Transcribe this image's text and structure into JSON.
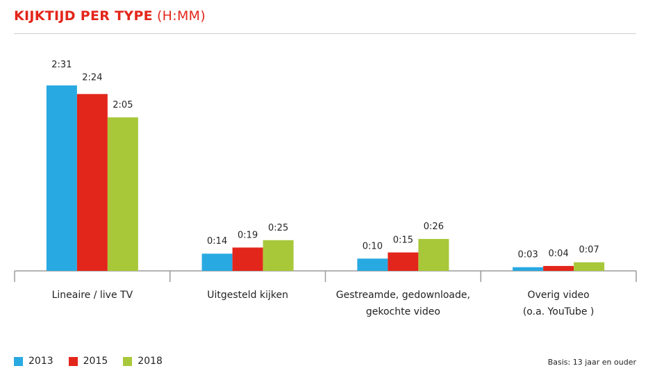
{
  "title": {
    "main": "KIJKTIJD PER TYPE",
    "unit": "(H:MM)"
  },
  "basis": "Basis: 13 jaar en ouder",
  "colors": {
    "2013": "#29a9e1",
    "2015": "#e3261b",
    "2018": "#a8c83a"
  },
  "chart_data": {
    "type": "bar",
    "categories": [
      [
        "Lineaire / live TV"
      ],
      [
        "Uitgesteld kijken"
      ],
      [
        "Gestreamde, gedownloade,",
        "gekochte video"
      ],
      [
        "Overig video",
        "(o.a. YouTube )"
      ]
    ],
    "series": [
      {
        "name": "2013",
        "values": [
          151,
          14,
          10,
          3
        ],
        "labels": [
          "2:31",
          "0:14",
          "0:10",
          "0:03"
        ]
      },
      {
        "name": "2015",
        "values": [
          144,
          19,
          15,
          4
        ],
        "labels": [
          "2:24",
          "0:19",
          "0:15",
          "0:04"
        ]
      },
      {
        "name": "2018",
        "values": [
          125,
          25,
          26,
          7
        ],
        "labels": [
          "2:05",
          "0:25",
          "0:26",
          "0:07"
        ]
      }
    ],
    "value_unit": "minutes",
    "ylim": [
      0,
      151
    ],
    "legend_position": "bottom-left",
    "grid": false
  }
}
